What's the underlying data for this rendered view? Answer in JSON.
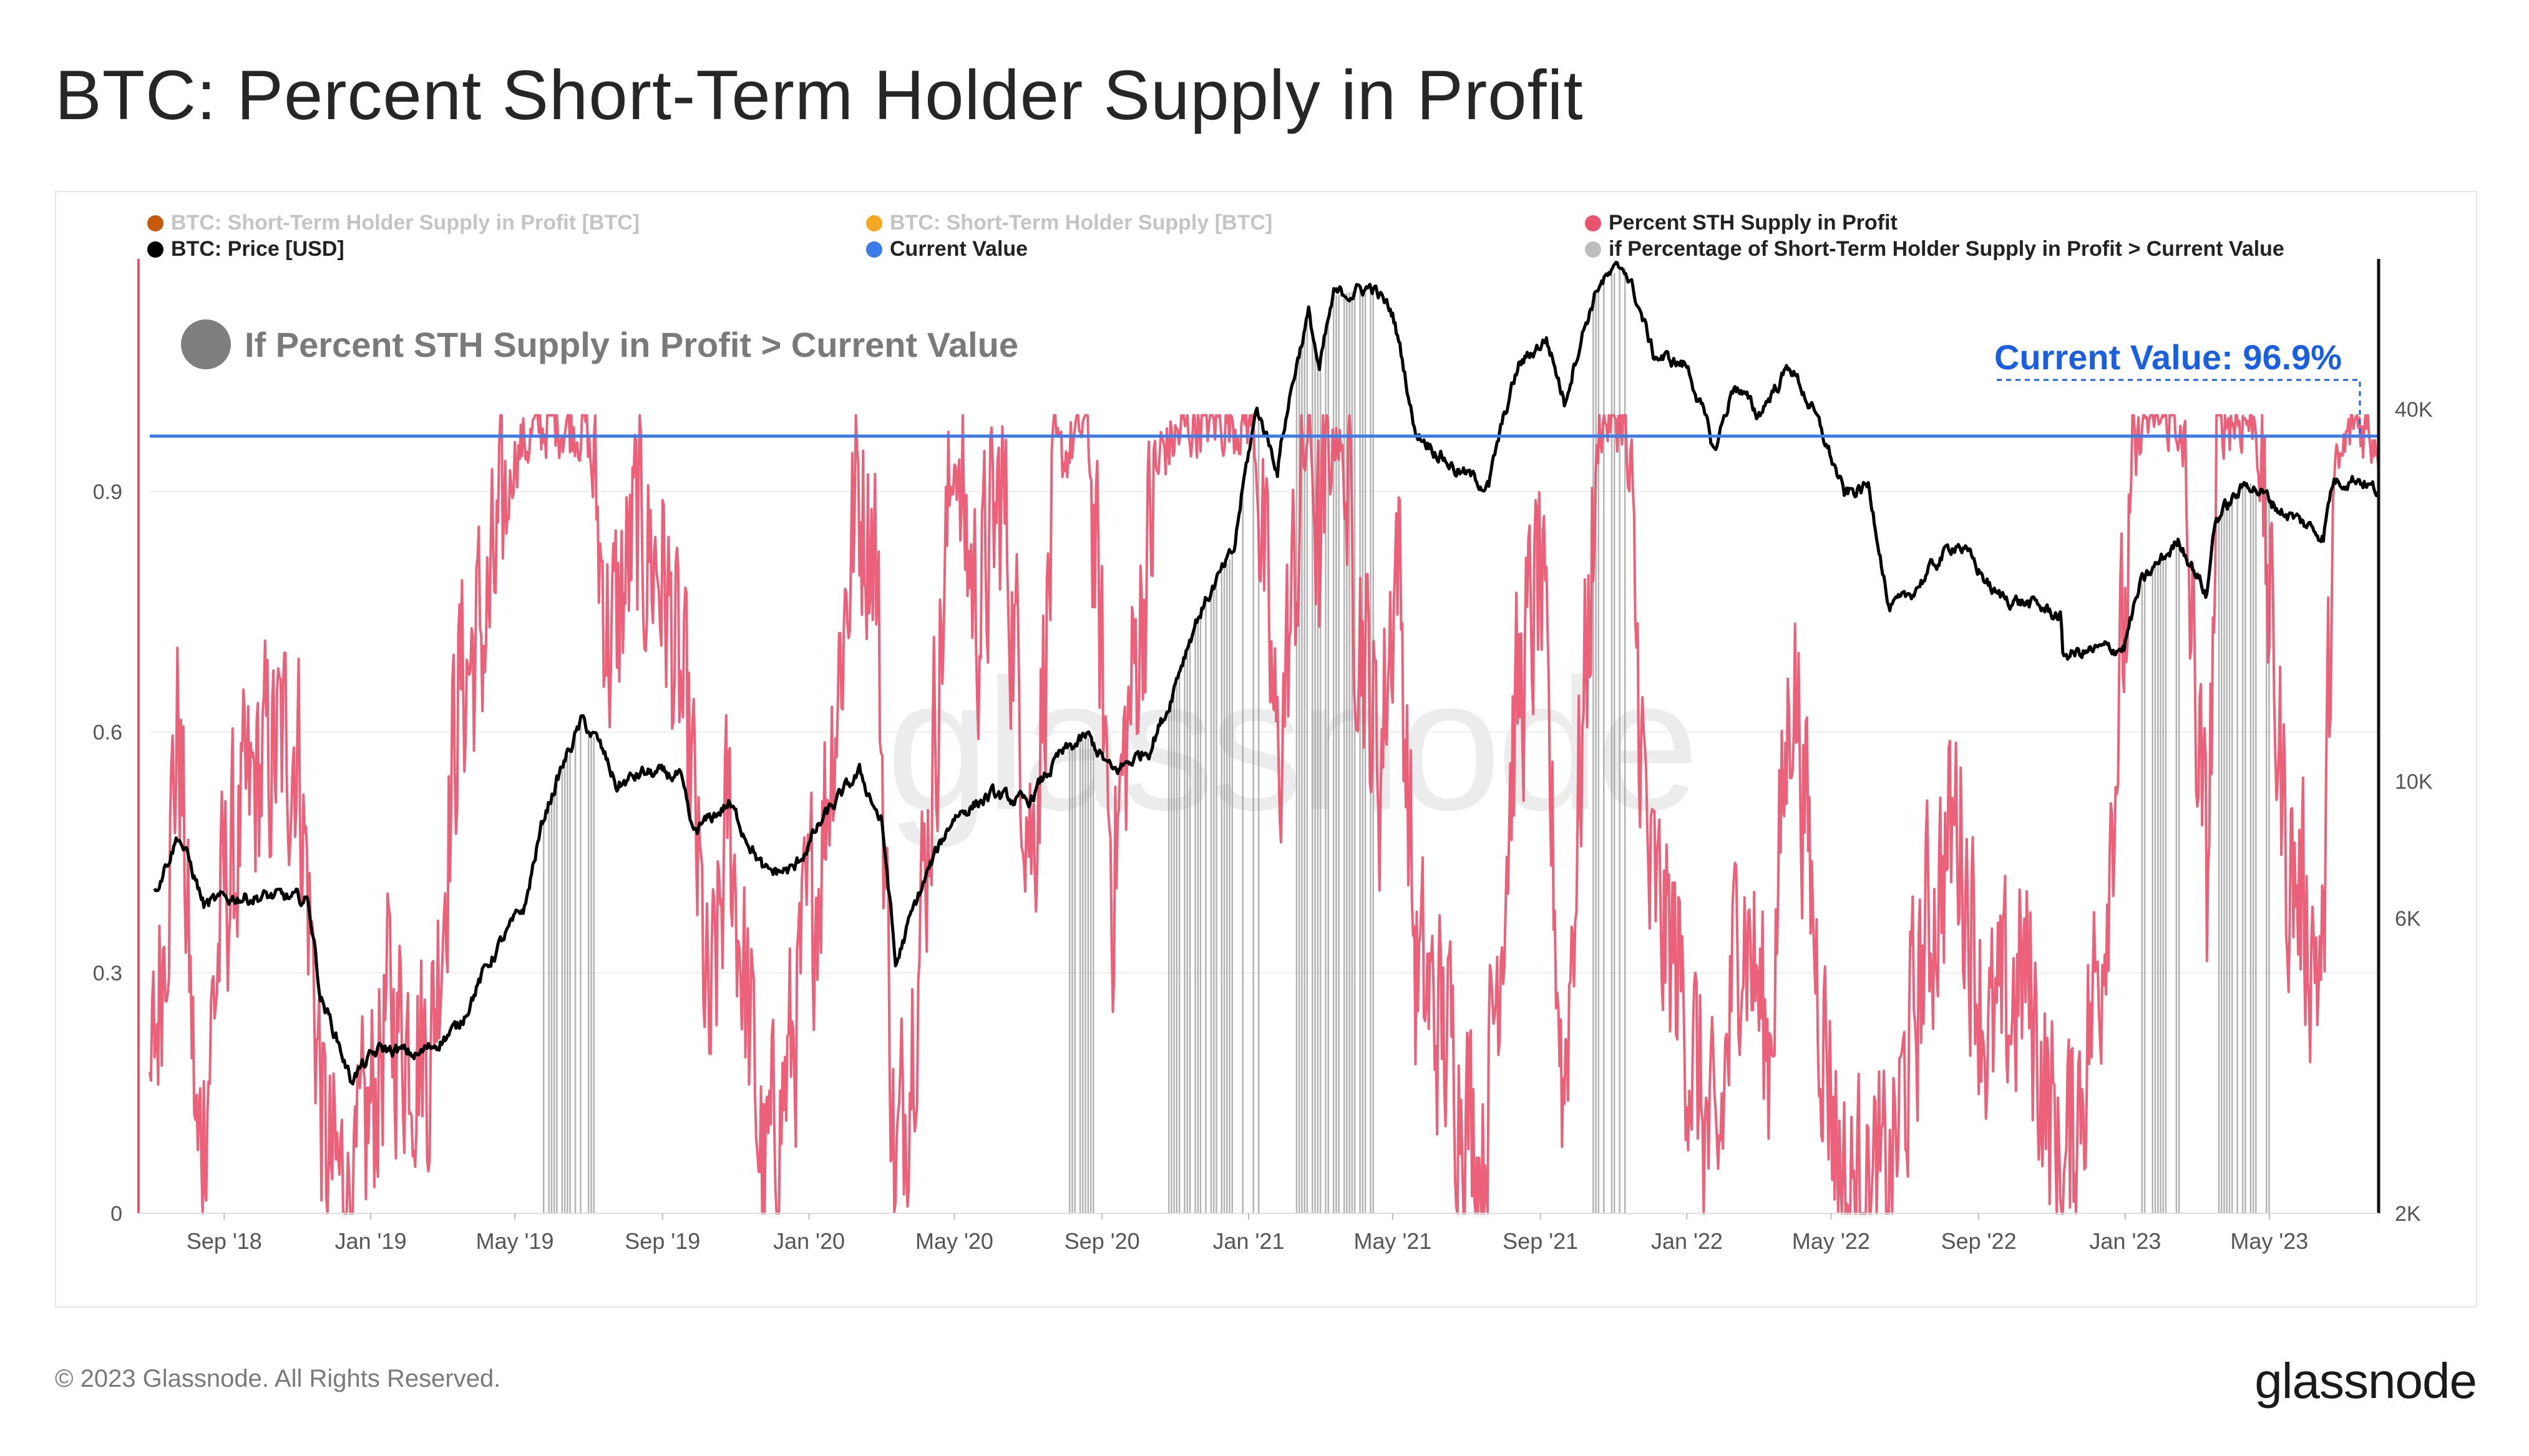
{
  "page": {
    "title": "BTC: Percent Short-Term Holder Supply in Profit",
    "copyright": "© 2023 Glassnode. All Rights Reserved.",
    "logo": "glassnode",
    "watermark": "glassnode"
  },
  "legend": [
    {
      "label": "BTC: Short-Term Holder Supply in Profit [BTC]",
      "color": "#c8590c",
      "muted": true
    },
    {
      "label": "BTC: Short-Term Holder Supply [BTC]",
      "color": "#f5a623",
      "muted": true
    },
    {
      "label": "Percent STH Supply in Profit",
      "color": "#e8546e",
      "muted": false
    },
    {
      "label": "BTC: Price [USD]",
      "color": "#000000",
      "muted": false
    },
    {
      "label": "Current Value",
      "color": "#3c7be8",
      "muted": false
    },
    {
      "label": "if Percentage of Short-Term Holder Supply in Profit > Current Value",
      "color": "#bdbdbd",
      "muted": false
    }
  ],
  "annotations": {
    "condition_label": "If Percent STH Supply in Profit > Current Value",
    "current_value_label": "Current Value: 96.9%"
  },
  "chart_data": {
    "type": "line",
    "x_range": [
      "2018-07-01",
      "2023-07-31"
    ],
    "x_ticks": [
      "Sep '18",
      "Jan '19",
      "May '19",
      "Sep '19",
      "Jan '20",
      "May '20",
      "Sep '20",
      "Jan '21",
      "May '21",
      "Sep '21",
      "Jan '22",
      "May '22",
      "Sep '22",
      "Jan '23",
      "May '23"
    ],
    "x_tick_dates": [
      "2018-09-01",
      "2019-01-01",
      "2019-05-01",
      "2019-09-01",
      "2020-01-01",
      "2020-05-01",
      "2020-09-01",
      "2021-01-01",
      "2021-05-01",
      "2021-09-01",
      "2022-01-01",
      "2022-05-01",
      "2022-09-01",
      "2023-01-01",
      "2023-05-01"
    ],
    "y_left": {
      "ticks": [
        "0",
        "0.3",
        "0.6",
        "0.9"
      ],
      "tick_values": [
        0,
        0.3,
        0.6,
        0.9
      ],
      "range": [
        0,
        1.19
      ]
    },
    "y_right": {
      "scale": "log",
      "ticks": [
        "2K",
        "6K",
        "10K",
        "40K"
      ],
      "tick_values": [
        2000,
        6000,
        10000,
        40000
      ],
      "range": [
        2000,
        70000
      ]
    },
    "current_value": 0.969,
    "series": [
      {
        "name": "BTC: Price [USD]",
        "axis": "right",
        "color": "#000000",
        "points": [
          [
            "2018-07-05",
            6600
          ],
          [
            "2018-07-25",
            8200
          ],
          [
            "2018-08-15",
            6300
          ],
          [
            "2018-09-10",
            6500
          ],
          [
            "2018-10-15",
            6500
          ],
          [
            "2018-11-10",
            6400
          ],
          [
            "2018-11-20",
            4500
          ],
          [
            "2018-12-15",
            3300
          ],
          [
            "2019-01-10",
            3700
          ],
          [
            "2019-02-10",
            3600
          ],
          [
            "2019-03-15",
            4000
          ],
          [
            "2019-04-10",
            5100
          ],
          [
            "2019-05-10",
            6300
          ],
          [
            "2019-05-25",
            8700
          ],
          [
            "2019-06-26",
            12500
          ],
          [
            "2019-07-10",
            11500
          ],
          [
            "2019-07-25",
            9800
          ],
          [
            "2019-08-15",
            10300
          ],
          [
            "2019-09-15",
            10200
          ],
          [
            "2019-09-26",
            8200
          ],
          [
            "2019-10-26",
            9200
          ],
          [
            "2019-11-25",
            7100
          ],
          [
            "2019-12-20",
            7200
          ],
          [
            "2020-01-15",
            8800
          ],
          [
            "2020-02-12",
            10300
          ],
          [
            "2020-03-01",
            8600
          ],
          [
            "2020-03-13",
            5000
          ],
          [
            "2020-04-01",
            6500
          ],
          [
            "2020-05-01",
            8800
          ],
          [
            "2020-06-01",
            9500
          ],
          [
            "2020-07-01",
            9200
          ],
          [
            "2020-07-28",
            11000
          ],
          [
            "2020-08-20",
            11800
          ],
          [
            "2020-09-10",
            10300
          ],
          [
            "2020-10-10",
            11300
          ],
          [
            "2020-10-25",
            13000
          ],
          [
            "2020-11-20",
            18500
          ],
          [
            "2020-12-20",
            23500
          ],
          [
            "2021-01-08",
            40000
          ],
          [
            "2021-01-25",
            32000
          ],
          [
            "2021-02-20",
            57000
          ],
          [
            "2021-03-01",
            46000
          ],
          [
            "2021-03-13",
            61000
          ],
          [
            "2021-04-14",
            63000
          ],
          [
            "2021-05-01",
            57000
          ],
          [
            "2021-05-19",
            37000
          ],
          [
            "2021-06-22",
            32000
          ],
          [
            "2021-07-20",
            30000
          ],
          [
            "2021-08-14",
            47000
          ],
          [
            "2021-09-06",
            52000
          ],
          [
            "2021-09-21",
            41000
          ],
          [
            "2021-10-20",
            64000
          ],
          [
            "2021-11-10",
            68000
          ],
          [
            "2021-12-04",
            49000
          ],
          [
            "2022-01-01",
            47000
          ],
          [
            "2022-01-24",
            34000
          ],
          [
            "2022-02-10",
            44000
          ],
          [
            "2022-03-01",
            39000
          ],
          [
            "2022-03-28",
            47000
          ],
          [
            "2022-04-15",
            40000
          ],
          [
            "2022-05-12",
            29000
          ],
          [
            "2022-06-01",
            30000
          ],
          [
            "2022-06-18",
            19000
          ],
          [
            "2022-07-01",
            19500
          ],
          [
            "2022-08-14",
            24500
          ],
          [
            "2022-09-15",
            20000
          ],
          [
            "2022-10-20",
            19200
          ],
          [
            "2022-11-08",
            18500
          ],
          [
            "2022-11-10",
            16000
          ],
          [
            "2022-12-31",
            16500
          ],
          [
            "2023-01-14",
            20800
          ],
          [
            "2023-02-15",
            24500
          ],
          [
            "2023-03-10",
            20000
          ],
          [
            "2023-03-17",
            26500
          ],
          [
            "2023-04-14",
            30500
          ],
          [
            "2023-05-10",
            27500
          ],
          [
            "2023-06-15",
            25000
          ],
          [
            "2023-06-23",
            30600
          ],
          [
            "2023-07-14",
            31000
          ],
          [
            "2023-07-31",
            29300
          ]
        ]
      },
      {
        "name": "Percent STH Supply in Profit",
        "axis": "left",
        "color": "#e8546e",
        "points": [
          [
            "2018-07-01",
            0.12
          ],
          [
            "2018-07-25",
            0.62
          ],
          [
            "2018-08-10",
            0.05
          ],
          [
            "2018-09-01",
            0.4
          ],
          [
            "2018-10-01",
            0.55
          ],
          [
            "2018-11-01",
            0.6
          ],
          [
            "2018-11-25",
            0.05
          ],
          [
            "2018-12-20",
            0.02
          ],
          [
            "2019-01-15",
            0.25
          ],
          [
            "2019-02-20",
            0.2
          ],
          [
            "2019-03-15",
            0.65
          ],
          [
            "2019-04-10",
            0.75
          ],
          [
            "2019-05-01",
            0.95
          ],
          [
            "2019-06-01",
            0.99
          ],
          [
            "2019-06-30",
            0.98
          ],
          [
            "2019-07-20",
            0.7
          ],
          [
            "2019-08-10",
            0.85
          ],
          [
            "2019-09-01",
            0.8
          ],
          [
            "2019-09-25",
            0.55
          ],
          [
            "2019-10-10",
            0.2
          ],
          [
            "2019-10-26",
            0.5
          ],
          [
            "2019-11-25",
            0.03
          ],
          [
            "2019-12-15",
            0.18
          ],
          [
            "2020-01-10",
            0.45
          ],
          [
            "2020-02-10",
            0.9
          ],
          [
            "2020-02-25",
            0.85
          ],
          [
            "2020-03-13",
            0.02
          ],
          [
            "2020-04-05",
            0.4
          ],
          [
            "2020-05-01",
            0.95
          ],
          [
            "2020-05-20",
            0.75
          ],
          [
            "2020-06-10",
            0.9
          ],
          [
            "2020-07-05",
            0.45
          ],
          [
            "2020-07-25",
            0.93
          ],
          [
            "2020-08-20",
            0.99
          ],
          [
            "2020-09-10",
            0.42
          ],
          [
            "2020-10-01",
            0.72
          ],
          [
            "2020-10-20",
            0.95
          ],
          [
            "2020-11-20",
            0.99
          ],
          [
            "2021-01-05",
            0.99
          ],
          [
            "2021-01-25",
            0.55
          ],
          [
            "2021-02-20",
            0.99
          ],
          [
            "2021-03-01",
            0.8
          ],
          [
            "2021-03-15",
            0.99
          ],
          [
            "2021-04-20",
            0.55
          ],
          [
            "2021-05-05",
            0.85
          ],
          [
            "2021-05-20",
            0.3
          ],
          [
            "2021-06-20",
            0.2
          ],
          [
            "2021-07-15",
            0.06
          ],
          [
            "2021-08-10",
            0.6
          ],
          [
            "2021-09-01",
            0.8
          ],
          [
            "2021-09-20",
            0.15
          ],
          [
            "2021-10-20",
            0.99
          ],
          [
            "2021-11-10",
            0.99
          ],
          [
            "2021-12-01",
            0.4
          ],
          [
            "2021-12-25",
            0.3
          ],
          [
            "2022-01-25",
            0.03
          ],
          [
            "2022-02-15",
            0.4
          ],
          [
            "2022-03-10",
            0.2
          ],
          [
            "2022-03-30",
            0.7
          ],
          [
            "2022-04-20",
            0.3
          ],
          [
            "2022-05-12",
            0.02
          ],
          [
            "2022-06-18",
            0.02
          ],
          [
            "2022-07-20",
            0.35
          ],
          [
            "2022-08-14",
            0.5
          ],
          [
            "2022-09-10",
            0.2
          ],
          [
            "2022-10-10",
            0.3
          ],
          [
            "2022-11-10",
            0.03
          ],
          [
            "2022-12-10",
            0.3
          ],
          [
            "2023-01-14",
            0.99
          ],
          [
            "2023-02-15",
            0.99
          ],
          [
            "2023-03-10",
            0.4
          ],
          [
            "2023-03-20",
            0.99
          ],
          [
            "2023-04-20",
            0.99
          ],
          [
            "2023-05-15",
            0.45
          ],
          [
            "2023-06-15",
            0.3
          ],
          [
            "2023-06-23",
            0.9
          ],
          [
            "2023-07-10",
            0.99
          ],
          [
            "2023-07-31",
            0.969
          ]
        ]
      }
    ],
    "highlight_periods": [
      [
        "2019-05-25",
        "2019-07-10"
      ],
      [
        "2020-08-05",
        "2020-08-25"
      ],
      [
        "2020-10-20",
        "2021-01-10"
      ],
      [
        "2021-02-10",
        "2021-04-15"
      ],
      [
        "2021-10-15",
        "2021-11-12"
      ],
      [
        "2023-01-15",
        "2023-02-15"
      ],
      [
        "2023-03-20",
        "2023-05-01"
      ]
    ]
  }
}
